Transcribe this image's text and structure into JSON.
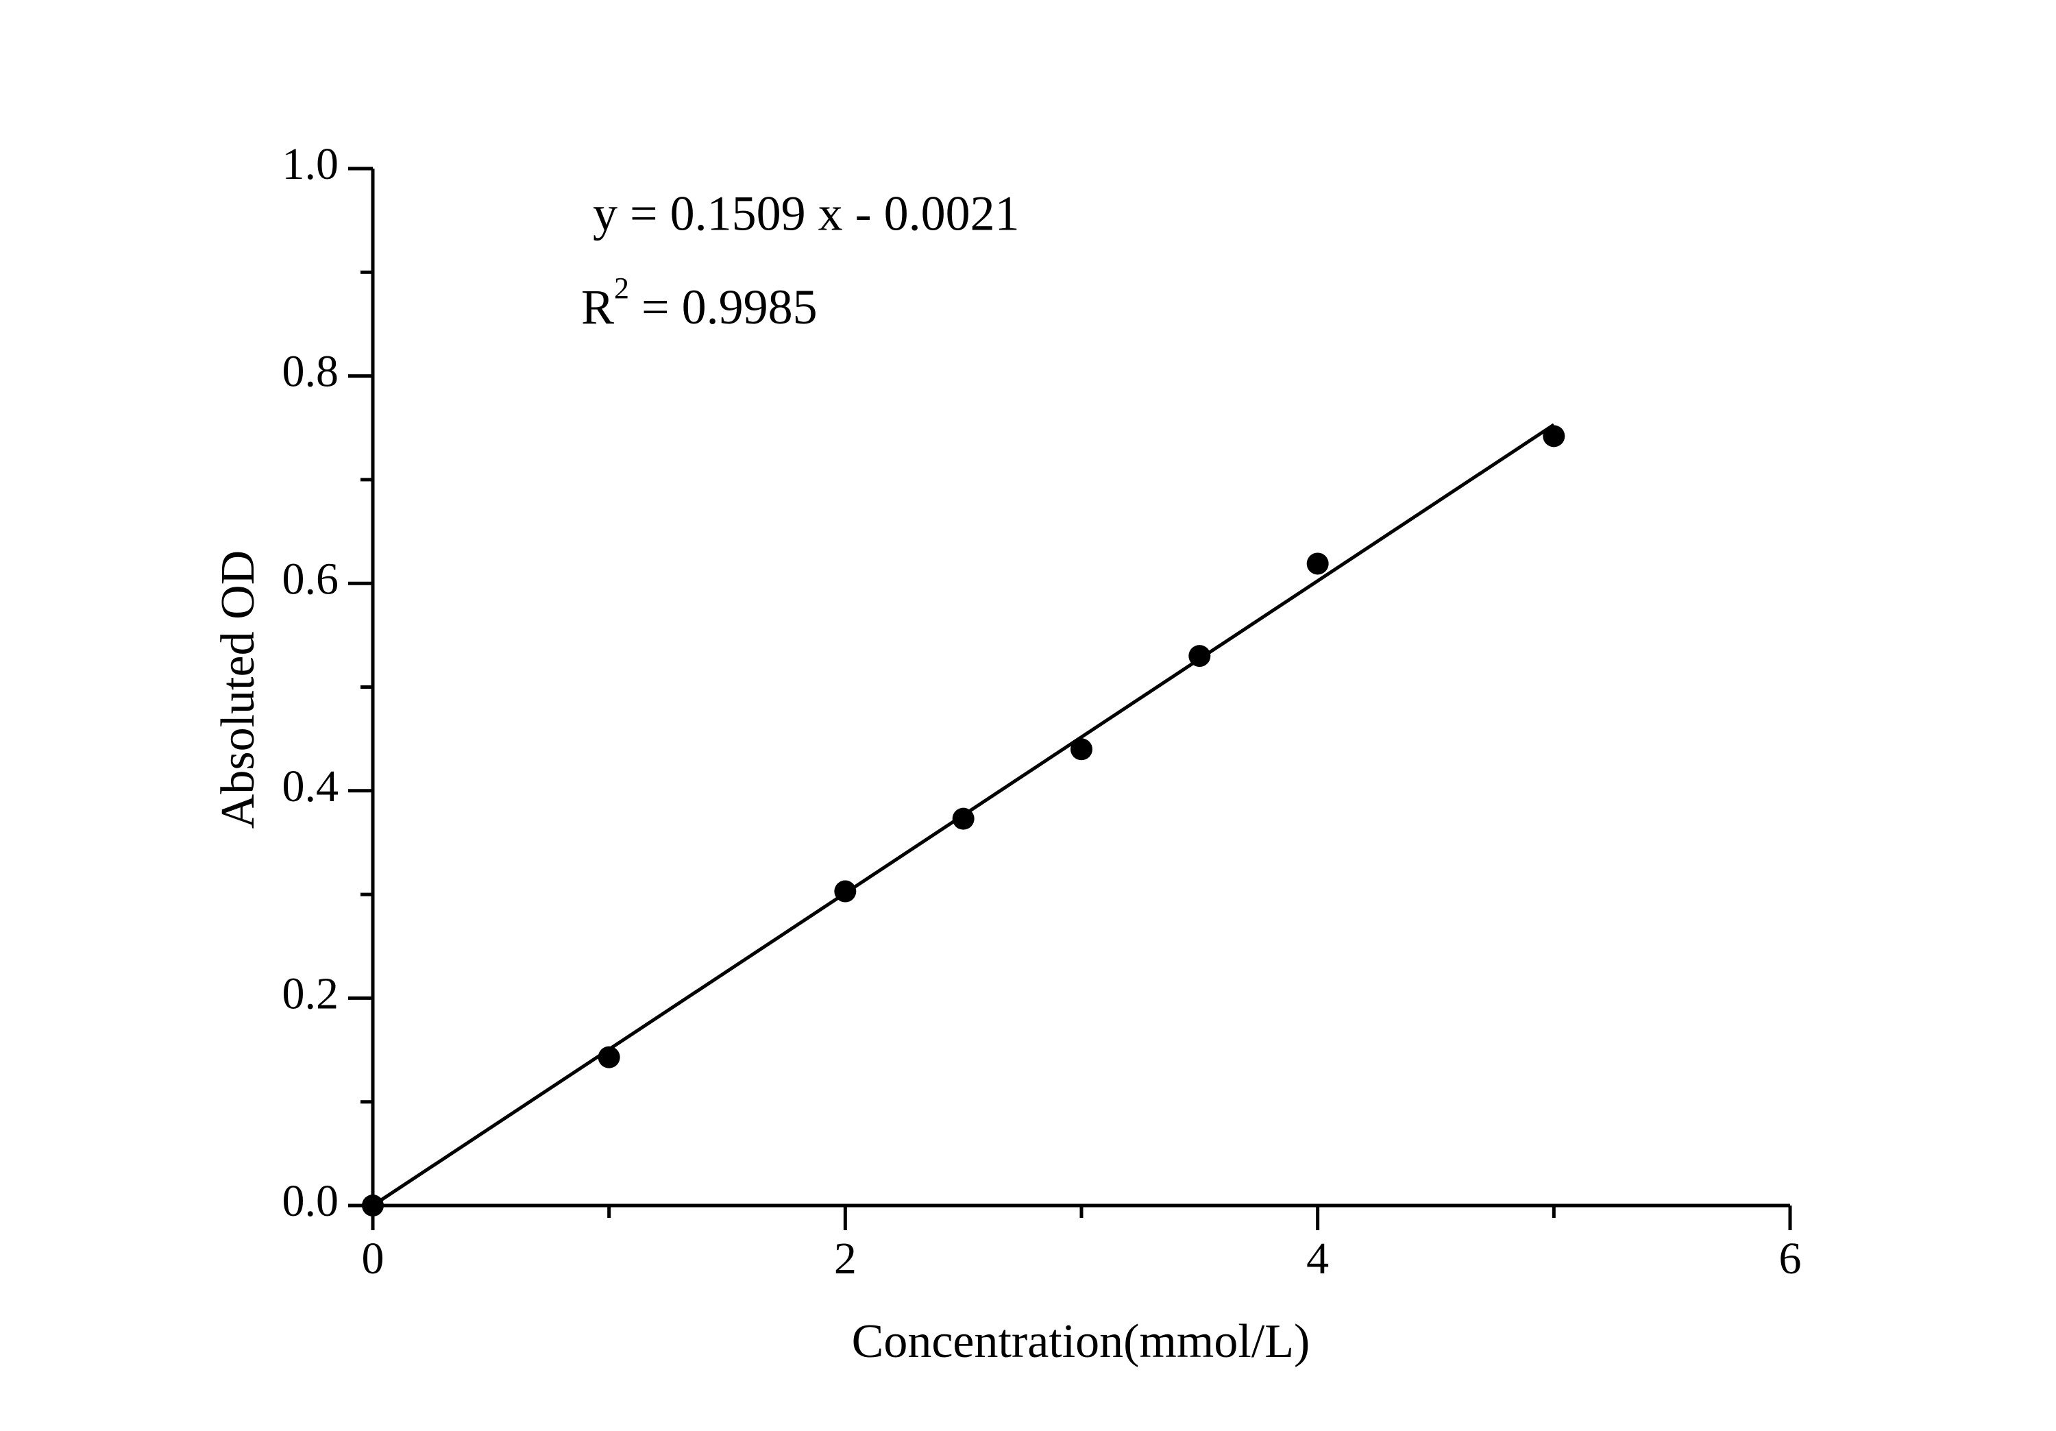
{
  "chart_data": {
    "type": "scatter",
    "xlabel": "Concentration(mmol/L)",
    "ylabel": "Absoluted OD",
    "annotations": {
      "equation": "y = 0.1509 x - 0.0021",
      "r2": [
        "R",
        "2",
        " = 0.9985"
      ]
    },
    "x": [
      0,
      1,
      2,
      2.5,
      3,
      3.5,
      4,
      5
    ],
    "values": [
      0,
      0.143,
      0.303,
      0.373,
      0.44,
      0.53,
      0.619,
      0.742
    ],
    "color": "#000000",
    "fit": {
      "x": [
        0,
        5
      ],
      "values": [
        0,
        0.753
      ]
    },
    "xlim": [
      0,
      6
    ],
    "xticks": [
      0,
      2,
      4,
      6
    ],
    "xminorticks": [
      1,
      3,
      5
    ],
    "ylim": [
      0,
      1
    ],
    "yticks": [
      {
        "value": 0,
        "label": "0.0"
      },
      0.2,
      0.4,
      0.6,
      0.8,
      {
        "value": 1,
        "label": "1.0"
      }
    ],
    "yminorticks": [
      0.1,
      0.3,
      0.5,
      0.7,
      0.9
    ]
  }
}
